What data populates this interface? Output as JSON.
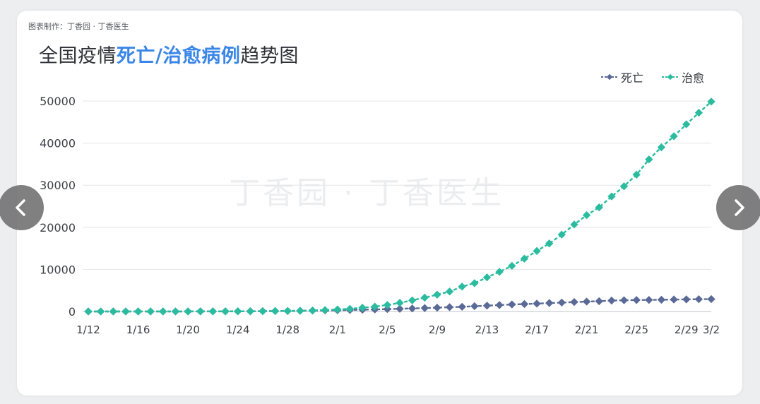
{
  "credit": "图表制作：丁香园 · 丁香医生",
  "title": {
    "prefix": "全国疫情",
    "highlight": "死亡/治愈病例",
    "suffix": "趋势图"
  },
  "watermark": "丁香园 · 丁香医生",
  "legend": [
    {
      "label": "死亡",
      "color": "#5a6a96"
    },
    {
      "label": "治愈",
      "color": "#2bbca0"
    }
  ],
  "nav": {
    "prev_icon": "chevron-left-icon",
    "next_icon": "chevron-right-icon"
  },
  "chart_data": {
    "type": "line",
    "title": "全国疫情死亡/治愈病例趋势图",
    "xlabel": "",
    "ylabel": "",
    "ylim": [
      0,
      50000
    ],
    "yticks": [
      0,
      10000,
      20000,
      30000,
      40000,
      50000
    ],
    "xtick_labels": [
      "1/12",
      "1/16",
      "1/20",
      "1/24",
      "1/28",
      "2/1",
      "2/5",
      "2/9",
      "2/13",
      "2/17",
      "2/21",
      "2/25",
      "2/29",
      "3/2"
    ],
    "grid": "horizontal",
    "legend_position": "top-right",
    "x": [
      "1/12",
      "1/13",
      "1/14",
      "1/15",
      "1/16",
      "1/17",
      "1/18",
      "1/19",
      "1/20",
      "1/21",
      "1/22",
      "1/23",
      "1/24",
      "1/25",
      "1/26",
      "1/27",
      "1/28",
      "1/29",
      "1/30",
      "1/31",
      "2/1",
      "2/2",
      "2/3",
      "2/4",
      "2/5",
      "2/6",
      "2/7",
      "2/8",
      "2/9",
      "2/10",
      "2/11",
      "2/12",
      "2/13",
      "2/14",
      "2/15",
      "2/16",
      "2/17",
      "2/18",
      "2/19",
      "2/20",
      "2/21",
      "2/22",
      "2/23",
      "2/24",
      "2/25",
      "2/26",
      "2/27",
      "2/28",
      "2/29",
      "3/1",
      "3/2"
    ],
    "series": [
      {
        "name": "死亡",
        "color": "#5a6a96",
        "values": [
          1,
          1,
          1,
          1,
          2,
          2,
          2,
          3,
          6,
          9,
          17,
          25,
          41,
          56,
          80,
          106,
          132,
          170,
          213,
          259,
          304,
          361,
          425,
          490,
          563,
          636,
          722,
          811,
          908,
          1016,
          1113,
          1259,
          1380,
          1523,
          1665,
          1770,
          1868,
          2004,
          2118,
          2236,
          2345,
          2442,
          2592,
          2663,
          2715,
          2744,
          2788,
          2835,
          2870,
          2912,
          2943
        ]
      },
      {
        "name": "治愈",
        "color": "#2bbca0",
        "values": [
          2,
          4,
          5,
          6,
          7,
          9,
          12,
          15,
          25,
          28,
          34,
          38,
          49,
          56,
          60,
          103,
          124,
          171,
          243,
          328,
          475,
          632,
          892,
          1153,
          1540,
          2050,
          2649,
          3281,
          3996,
          4740,
          5911,
          6723,
          8096,
          9419,
          10844,
          12552,
          14376,
          16155,
          18264,
          20659,
          22888,
          24734,
          27323,
          29745,
          32495,
          36117,
          39002,
          41625,
          44462,
          47204,
          49856
        ]
      }
    ]
  }
}
